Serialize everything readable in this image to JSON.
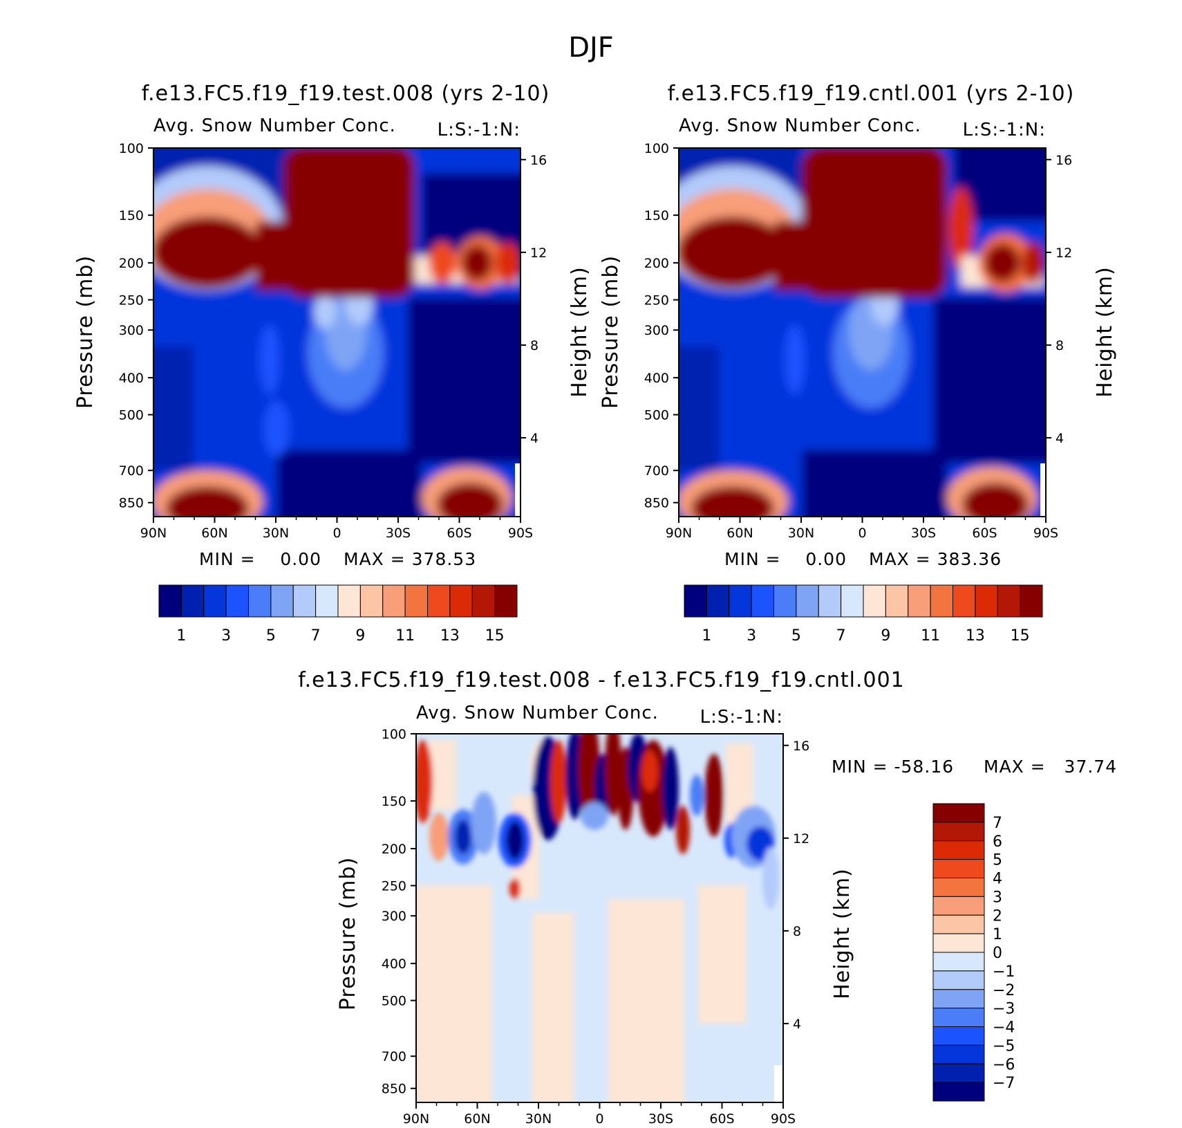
{
  "figure_title": "DJF",
  "chart_data": [
    {
      "type": "contour",
      "title": "f.e13.FC5.f19_f19.test.008 (yrs 2-10)",
      "subtitle": "Avg. Snow Number Conc.",
      "units_label": "L:S:-1:N:",
      "ylabel": "Pressure (mb)",
      "y2label": "Height (km)",
      "xticks": [
        "90N",
        "60N",
        "30N",
        "0",
        "30S",
        "60S",
        "90S"
      ],
      "yticks": [
        "100",
        "150",
        "200",
        "250",
        "300",
        "400",
        "500",
        "700",
        "850"
      ],
      "y2ticks": [
        "16",
        "12",
        "8",
        "4"
      ],
      "min_text": "MIN =    0.00",
      "max_text": "MAX = 378.53",
      "colorbar_labels": [
        "1",
        "3",
        "5",
        "7",
        "9",
        "11",
        "13",
        "15"
      ]
    },
    {
      "type": "contour",
      "title": "f.e13.FC5.f19_f19.cntl.001 (yrs 2-10)",
      "subtitle": "Avg. Snow Number Conc.",
      "units_label": "L:S:-1:N:",
      "ylabel": "Pressure (mb)",
      "y2label": "Height (km)",
      "xticks": [
        "90N",
        "60N",
        "30N",
        "0",
        "30S",
        "60S",
        "90S"
      ],
      "yticks": [
        "100",
        "150",
        "200",
        "250",
        "300",
        "400",
        "500",
        "700",
        "850"
      ],
      "y2ticks": [
        "16",
        "12",
        "8",
        "4"
      ],
      "min_text": "MIN =    0.00",
      "max_text": "MAX = 383.36",
      "colorbar_labels": [
        "1",
        "3",
        "5",
        "7",
        "9",
        "11",
        "13",
        "15"
      ]
    },
    {
      "type": "contour",
      "title": "f.e13.FC5.f19_f19.test.008 - f.e13.FC5.f19_f19.cntl.001",
      "subtitle": "Avg. Snow Number Conc.",
      "units_label": "L:S:-1:N:",
      "ylabel": "Pressure (mb)",
      "y2label": "Height (km)",
      "xticks": [
        "90N",
        "60N",
        "30N",
        "0",
        "30S",
        "60S",
        "90S"
      ],
      "yticks": [
        "100",
        "150",
        "200",
        "250",
        "300",
        "400",
        "500",
        "700",
        "850"
      ],
      "y2ticks": [
        "16",
        "12",
        "8",
        "4"
      ],
      "min_text": "MIN = -58.16",
      "max_text": "MAX =   37.74",
      "colorbar_labels": [
        "7",
        "6",
        "5",
        "4",
        "3",
        "2",
        "1",
        "0",
        "-1",
        "-2",
        "-3",
        "-4",
        "-5",
        "-6",
        "-7"
      ]
    }
  ],
  "colors": {
    "abs_scale": [
      "#00007f",
      "#0020b0",
      "#0536dc",
      "#1a53ff",
      "#4a7df7",
      "#7fa4f5",
      "#b2cbfb",
      "#d8e8fc",
      "#fde6d6",
      "#fcc5a6",
      "#f89e78",
      "#f4743f",
      "#ee4a1e",
      "#dc2a07",
      "#b31705",
      "#870000"
    ],
    "diff_scale": [
      "#870000",
      "#b31705",
      "#dc2a07",
      "#ee4a1e",
      "#f4743f",
      "#f89e78",
      "#fcc5a6",
      "#fde6d6",
      "#d8e8fc",
      "#b2cbfb",
      "#7fa4f5",
      "#4a7df7",
      "#1a53ff",
      "#0536dc",
      "#0020b0",
      "#00007f"
    ]
  }
}
